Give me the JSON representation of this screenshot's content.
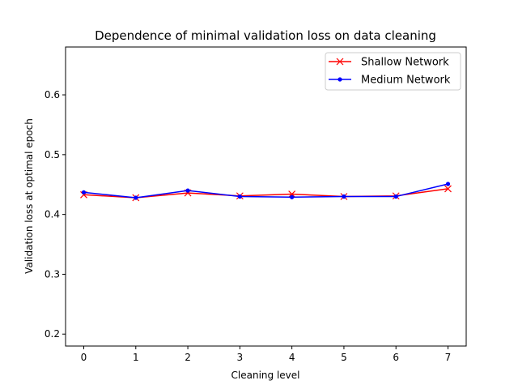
{
  "chart_data": {
    "type": "line",
    "title": "Dependence of minimal validation loss on data cleaning",
    "xlabel": "Cleaning level",
    "ylabel": "Validation loss at optimal epoch",
    "xlim": [
      -0.35,
      7.35
    ],
    "ylim": [
      0.18,
      0.68
    ],
    "x": [
      0,
      1,
      2,
      3,
      4,
      5,
      6,
      7
    ],
    "xticks": [
      "0",
      "1",
      "2",
      "3",
      "4",
      "5",
      "6",
      "7"
    ],
    "yticks": [
      "0.2",
      "0.3",
      "0.4",
      "0.5",
      "0.6"
    ],
    "ytick_values": [
      0.2,
      0.3,
      0.4,
      0.5,
      0.6
    ],
    "legend_position": "top-right",
    "grid": false,
    "series": [
      {
        "name": "Shallow Network",
        "color": "#ff0000",
        "marker": "x",
        "values": [
          0.433,
          0.428,
          0.436,
          0.431,
          0.434,
          0.43,
          0.431,
          0.443
        ]
      },
      {
        "name": "Medium Network",
        "color": "#0000ff",
        "marker": "dot",
        "values": [
          0.437,
          0.428,
          0.44,
          0.43,
          0.429,
          0.43,
          0.43,
          0.451
        ]
      }
    ]
  }
}
